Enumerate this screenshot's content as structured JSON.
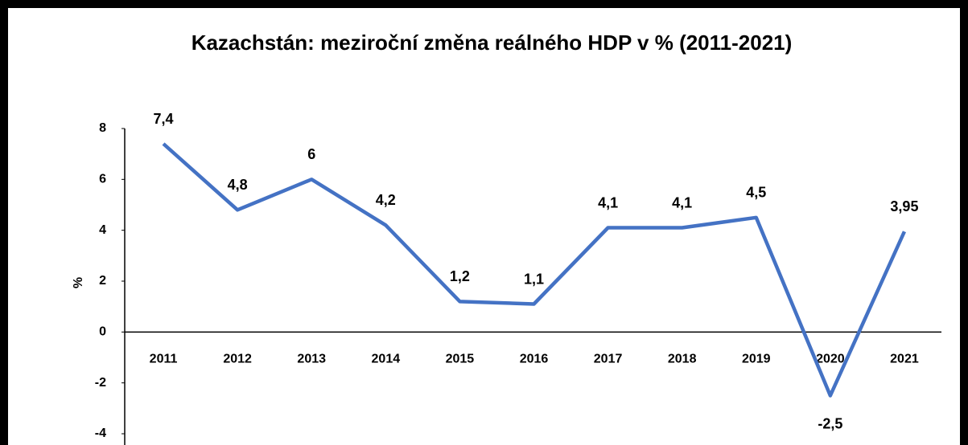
{
  "chart_data": {
    "type": "line",
    "title": "Kazachstán: meziroční změna reálného HDP v % (2011-2021)",
    "y_label": "%",
    "categories": [
      "2011",
      "2012",
      "2013",
      "2014",
      "2015",
      "2016",
      "2017",
      "2018",
      "2019",
      "2020",
      "2021"
    ],
    "series": [
      {
        "name": "HDP",
        "color": "#4472c4",
        "values": [
          7.4,
          4.8,
          6,
          4.2,
          1.2,
          1.1,
          4.1,
          4.1,
          4.5,
          -2.5,
          3.95
        ],
        "value_labels": [
          "7,4",
          "4,8",
          "6",
          "4,2",
          "1,2",
          "1,1",
          "4,1",
          "4,1",
          "4,5",
          "-2,5",
          "3,95"
        ]
      }
    ],
    "ylim": [
      -4,
      8
    ],
    "yticks": [
      -4,
      -2,
      0,
      2,
      4,
      6,
      8
    ],
    "grid": false
  }
}
